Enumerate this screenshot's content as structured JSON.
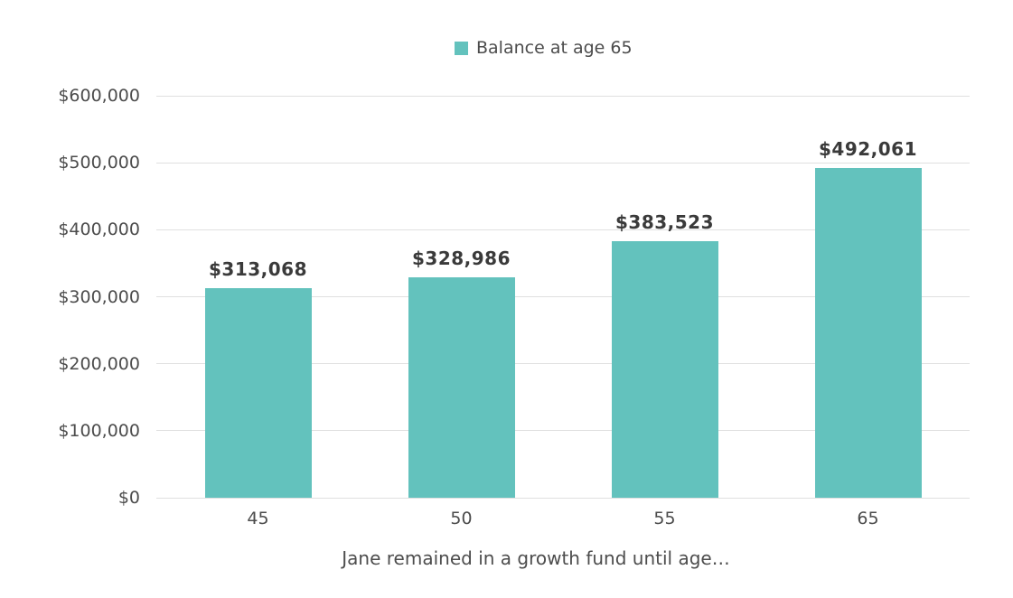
{
  "chart_data": {
    "type": "bar",
    "title": "",
    "legend": [
      {
        "label": "Balance at age 65",
        "color": "#63c2bd"
      }
    ],
    "legend_position": "top-center",
    "categories": [
      "45",
      "50",
      "55",
      "65"
    ],
    "values": [
      313068,
      328986,
      383523,
      492061
    ],
    "value_labels": [
      "$313,068",
      "$328,986",
      "$383,523",
      "$492,061"
    ],
    "xlabel": "Jane remained in a growth fund until age…",
    "ylabel": "",
    "ylim": [
      0,
      600000
    ],
    "y_ticks": [
      {
        "value": 0,
        "label": "$0"
      },
      {
        "value": 100000,
        "label": "$100,000"
      },
      {
        "value": 200000,
        "label": "$200,000"
      },
      {
        "value": 300000,
        "label": "$300,000"
      },
      {
        "value": 400000,
        "label": "$400,000"
      },
      {
        "value": 500000,
        "label": "$500,000"
      },
      {
        "value": 600000,
        "label": "$600,000"
      }
    ],
    "grid": true,
    "colors": {
      "bar": "#63c2bd",
      "grid": "#e0e0e0",
      "tick_text": "#4c4c4c",
      "value_text": "#3a3a3a",
      "axis_title_text": "#4d4d4d",
      "background": "#ffffff"
    }
  }
}
